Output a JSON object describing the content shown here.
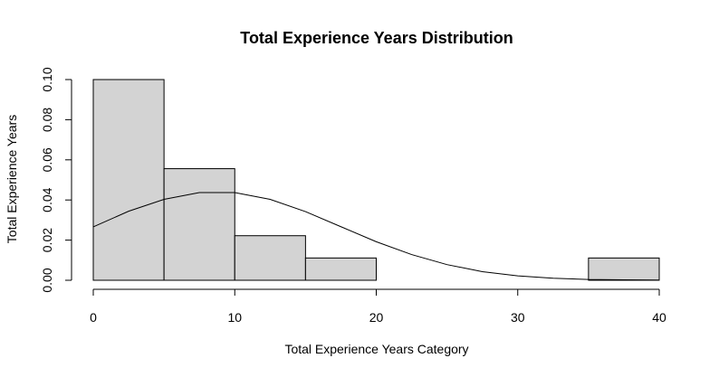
{
  "chart_data": {
    "type": "bar",
    "title": "Total Experience Years Distribution",
    "xlabel": "Total Experience Years Category",
    "ylabel": "Total Experience Years",
    "xlim": [
      0,
      40
    ],
    "ylim": [
      0,
      0.1
    ],
    "x_ticks": [
      "0",
      "10",
      "20",
      "30",
      "40"
    ],
    "y_ticks": [
      "0.00",
      "0.02",
      "0.04",
      "0.06",
      "0.08",
      "0.10"
    ],
    "bins": [
      {
        "x0": 0,
        "x1": 5,
        "density": 0.1
      },
      {
        "x0": 5,
        "x1": 10,
        "density": 0.0556
      },
      {
        "x0": 10,
        "x1": 15,
        "density": 0.0222
      },
      {
        "x0": 15,
        "x1": 20,
        "density": 0.0111
      },
      {
        "x0": 20,
        "x1": 25,
        "density": 0
      },
      {
        "x0": 25,
        "x1": 30,
        "density": 0
      },
      {
        "x0": 30,
        "x1": 35,
        "density": 0
      },
      {
        "x0": 35,
        "x1": 40,
        "density": 0.0111
      }
    ],
    "curve": {
      "x": [
        0,
        2.5,
        5,
        7.5,
        10,
        12.5,
        15,
        17.5,
        20,
        22.5,
        25,
        27.5,
        30,
        32.5,
        35,
        37.5,
        40
      ],
      "y": [
        0.0266,
        0.0344,
        0.0403,
        0.0437,
        0.0437,
        0.0403,
        0.0342,
        0.0267,
        0.0192,
        0.0128,
        0.0078,
        0.0043,
        0.0022,
        0.001,
        0.0004,
        0.0002,
        0.0001
      ]
    },
    "grid": false,
    "legend": "none"
  }
}
